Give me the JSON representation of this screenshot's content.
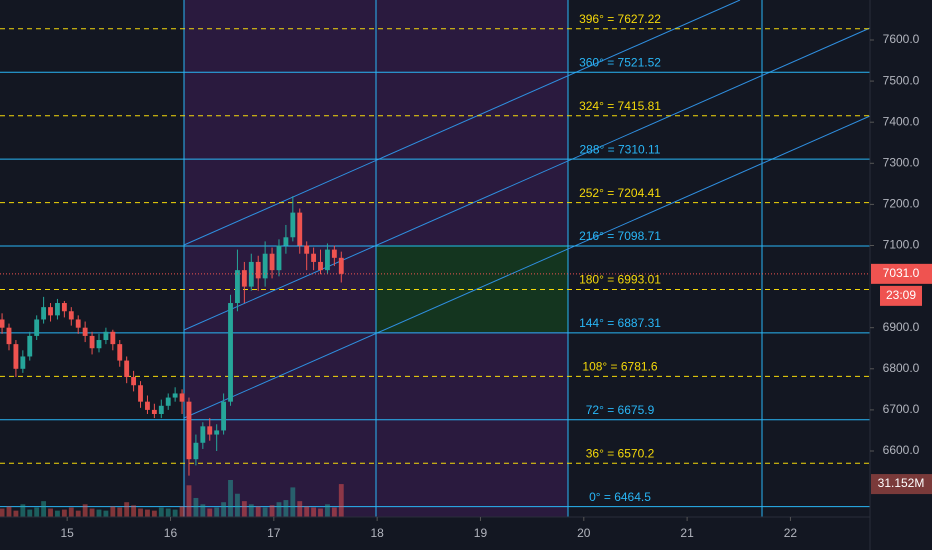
{
  "chart_data": {
    "type": "candlestick",
    "x": [
      14.37,
      14.437,
      14.504,
      14.571,
      14.638,
      14.705,
      14.772,
      14.839,
      14.906,
      14.973,
      15.04,
      15.107,
      15.174,
      15.241,
      15.308,
      15.375,
      15.442,
      15.509,
      15.576,
      15.643,
      15.71,
      15.777,
      15.844,
      15.911,
      15.978,
      16.045,
      16.112,
      16.179,
      16.246,
      16.313,
      16.38,
      16.447,
      16.514,
      16.581,
      16.648,
      16.715,
      16.782,
      16.849,
      16.916,
      16.983,
      17.05,
      17.117,
      17.184,
      17.251,
      17.318,
      17.385,
      17.452,
      17.519,
      17.586,
      17.653
    ],
    "open": [
      6920,
      6900,
      6860,
      6800,
      6830,
      6880,
      6920,
      6950,
      6930,
      6960,
      6940,
      6920,
      6900,
      6880,
      6850,
      6870,
      6890,
      6860,
      6820,
      6780,
      6760,
      6720,
      6700,
      6690,
      6710,
      6730,
      6740,
      6720,
      6580,
      6620,
      6660,
      6640,
      6650,
      6720,
      6960,
      7040,
      7000,
      7060,
      7020,
      7080,
      7040,
      7100,
      7120,
      7180,
      7100,
      7080,
      7060,
      7040,
      7090,
      7070
    ],
    "high": [
      6935,
      6910,
      6870,
      6845,
      6890,
      6930,
      6975,
      6960,
      6970,
      6965,
      6950,
      6930,
      6915,
      6890,
      6885,
      6900,
      6895,
      6870,
      6830,
      6795,
      6770,
      6735,
      6715,
      6725,
      6740,
      6755,
      6750,
      6730,
      6640,
      6670,
      6680,
      6665,
      6740,
      6980,
      7090,
      7060,
      7080,
      7075,
      7110,
      7095,
      7115,
      7150,
      7220,
      7190,
      7110,
      7095,
      7090,
      7105,
      7100,
      7085
    ],
    "low": [
      6885,
      6845,
      6780,
      6790,
      6820,
      6870,
      6910,
      6915,
      6920,
      6925,
      6905,
      6885,
      6865,
      6835,
      6840,
      6860,
      6845,
      6805,
      6765,
      6745,
      6705,
      6690,
      6680,
      6680,
      6700,
      6720,
      6690,
      6540,
      6565,
      6605,
      6625,
      6600,
      6640,
      6710,
      6940,
      6960,
      6990,
      6990,
      7000,
      7020,
      7025,
      7080,
      7110,
      7080,
      7040,
      7040,
      7030,
      7030,
      7050,
      7010
    ],
    "close": [
      6900,
      6860,
      6800,
      6830,
      6880,
      6920,
      6950,
      6930,
      6960,
      6940,
      6920,
      6900,
      6880,
      6850,
      6870,
      6890,
      6860,
      6820,
      6780,
      6760,
      6720,
      6700,
      6690,
      6710,
      6730,
      6740,
      6720,
      6580,
      6620,
      6660,
      6640,
      6650,
      6720,
      6960,
      7040,
      7000,
      7060,
      7020,
      7080,
      7040,
      7100,
      7120,
      7180,
      7100,
      7080,
      7060,
      7040,
      7090,
      7070,
      7031
    ],
    "volume": [
      8,
      10,
      6,
      12,
      7,
      9,
      15,
      8,
      6,
      7,
      9,
      6,
      12,
      8,
      7,
      6,
      10,
      9,
      14,
      11,
      8,
      7,
      6,
      9,
      8,
      7,
      10,
      30,
      18,
      12,
      8,
      9,
      14,
      35,
      22,
      15,
      12,
      10,
      9,
      11,
      14,
      16,
      28,
      15,
      10,
      9,
      8,
      12,
      9,
      31.152
    ],
    "volume_label": "31.152M",
    "up_color": "#26a69a",
    "down_color": "#ef5350",
    "xlim": [
      14.35,
      22.77
    ],
    "xticks": [
      15,
      16,
      17,
      18,
      19,
      20,
      21,
      22
    ],
    "ylim": [
      6439.4,
      7697.3
    ],
    "yticks": [
      {
        "value": 7600,
        "label": "7600.0"
      },
      {
        "value": 7500,
        "label": "7500.0"
      },
      {
        "value": 7400,
        "label": "7400.0"
      },
      {
        "value": 7300,
        "label": "7300.0"
      },
      {
        "value": 7200,
        "label": "7200.0"
      },
      {
        "value": 7100,
        "label": "7100.0"
      },
      {
        "value": 6900,
        "label": "6900.0"
      },
      {
        "value": 6800,
        "label": "6800.0"
      },
      {
        "value": 6700,
        "label": "6700.0"
      },
      {
        "value": 6600,
        "label": "6600.0"
      }
    ],
    "last_price": {
      "value": 7031,
      "label": "7031.0"
    },
    "countdown": "23:09",
    "levels": [
      {
        "label": "396° = 7627.22",
        "value": 7627.22,
        "style": "dashed",
        "color": "#f5d90a"
      },
      {
        "label": "360° = 7521.52",
        "value": 7521.52,
        "style": "solid",
        "color": "#29b6f6"
      },
      {
        "label": "324° = 7415.81",
        "value": 7415.81,
        "style": "dashed",
        "color": "#f5d90a"
      },
      {
        "label": "288° = 7310.11",
        "value": 7310.11,
        "style": "solid",
        "color": "#29b6f6"
      },
      {
        "label": "252° = 7204.41",
        "value": 7204.41,
        "style": "dashed",
        "color": "#f5d90a"
      },
      {
        "label": "216° = 7098.71",
        "value": 7098.71,
        "style": "solid",
        "color": "#29b6f6"
      },
      {
        "label": "180° = 6993.01",
        "value": 6993.01,
        "style": "dashed",
        "color": "#f5d90a"
      },
      {
        "label": "144° = 6887.31",
        "value": 6887.31,
        "style": "solid",
        "color": "#29b6f6"
      },
      {
        "label": "108° = 6781.6",
        "value": 6781.6,
        "style": "dashed",
        "color": "#f5d90a"
      },
      {
        "label": "72° = 6675.9",
        "value": 6675.9,
        "style": "solid",
        "color": "#29b6f6"
      },
      {
        "label": "36° = 6570.2",
        "value": 6570.2,
        "style": "dashed",
        "color": "#f5d90a"
      },
      {
        "label": "0° = 6464.5",
        "value": 6464.5,
        "style": "solid",
        "color": "#29b6f6"
      }
    ]
  }
}
